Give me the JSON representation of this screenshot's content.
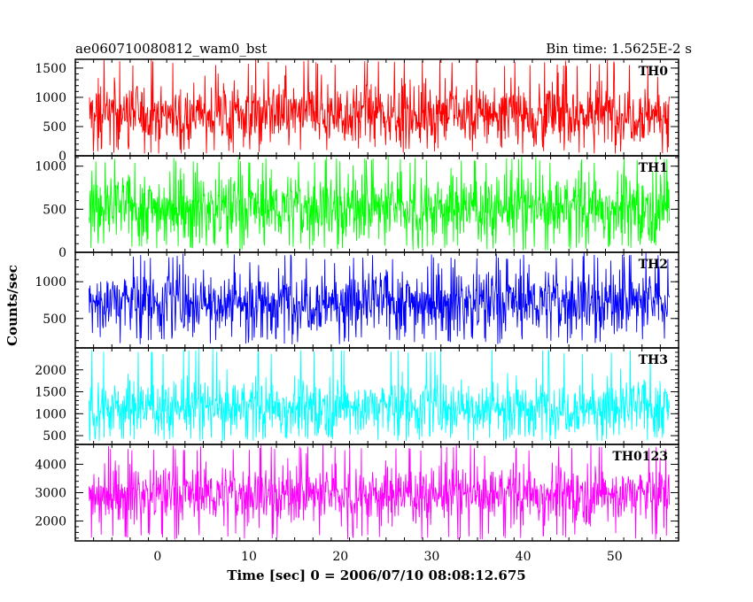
{
  "header": {
    "title": "ae060710080812_wam0_bst",
    "bin_time": "Bin time: 1.5625E-2 s"
  },
  "chart_data": {
    "type": "line",
    "title": "ae060710080812_wam0_bst",
    "xlabel": "Time [sec] 0 = 2006/07/10 08:08:12.675",
    "ylabel": "Counts/sec",
    "xlim": [
      -9,
      57
    ],
    "x_range_data": [
      -7.5,
      56
    ],
    "x_ticks": [
      0,
      10,
      20,
      30,
      40,
      50
    ],
    "x_tick_labels": [
      "0",
      "10",
      "20",
      "30",
      "40",
      "50"
    ],
    "grid": false,
    "panels": [
      {
        "name": "TH0",
        "color": "#ff0000",
        "ylim": [
          0,
          1650
        ],
        "y_ticks": [
          0,
          500,
          1000,
          1500
        ],
        "y_tick_labels": [
          "0",
          "500",
          "1000",
          "1500"
        ],
        "mean": 720,
        "spread": 400,
        "min": 40,
        "max": 1650
      },
      {
        "name": "TH1",
        "color": "#00ff00",
        "ylim": [
          0,
          1120
        ],
        "y_ticks": [
          0,
          500,
          1000
        ],
        "y_tick_labels": [
          "0",
          "500",
          "1000"
        ],
        "mean": 520,
        "spread": 290,
        "min": 20,
        "max": 1120
      },
      {
        "name": "TH2",
        "color": "#0000ff",
        "ylim": [
          100,
          1400
        ],
        "y_ticks": [
          500,
          1000
        ],
        "y_tick_labels": [
          "500",
          "1000"
        ],
        "mean": 730,
        "spread": 330,
        "min": 150,
        "max": 1400
      },
      {
        "name": "TH3",
        "color": "#00ffff",
        "ylim": [
          300,
          2500
        ],
        "y_ticks": [
          500,
          1000,
          1500,
          2000
        ],
        "y_tick_labels": [
          "500",
          "1000",
          "1500",
          "2000"
        ],
        "mean": 1150,
        "spread": 480,
        "min": 380,
        "max": 2500
      },
      {
        "name": "TH0123",
        "color": "#ff00ff",
        "ylim": [
          1300,
          4700
        ],
        "y_ticks": [
          2000,
          3000,
          4000
        ],
        "y_tick_labels": [
          "2000",
          "3000",
          "4000"
        ],
        "mean": 2950,
        "spread": 750,
        "min": 1350,
        "max": 4700
      }
    ]
  }
}
